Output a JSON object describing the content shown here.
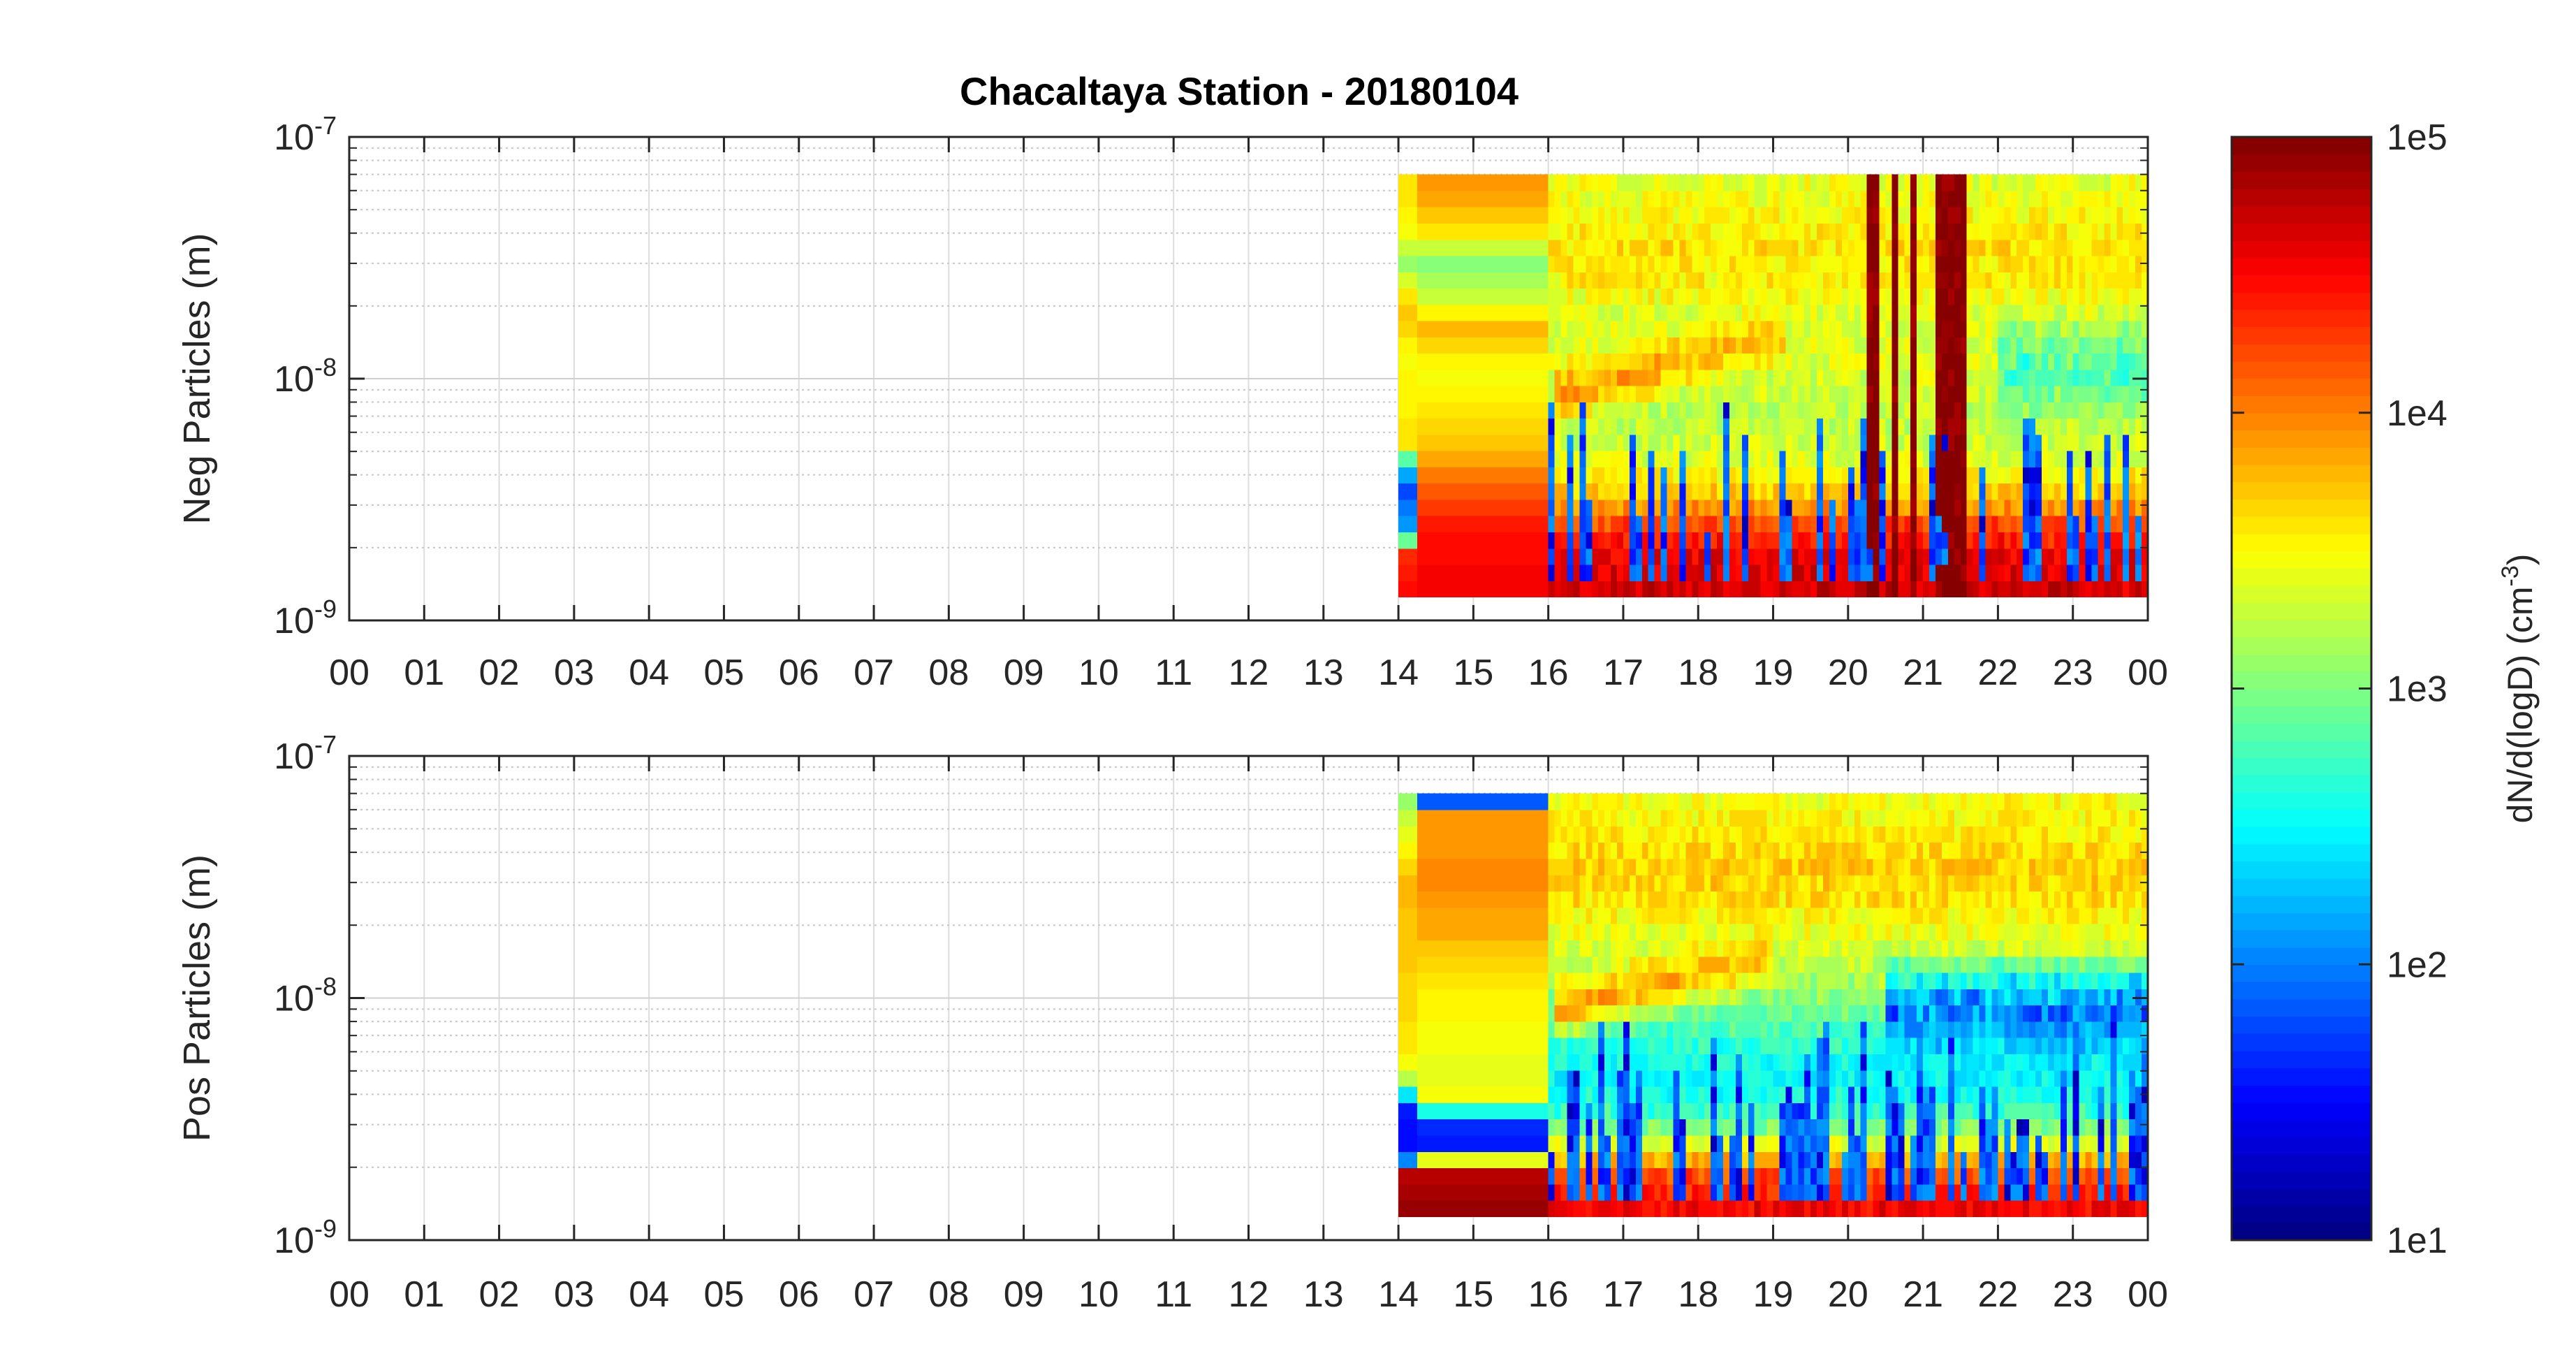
{
  "figure": {
    "title": "Chacaltaya Station - 20180104"
  },
  "colorbar": {
    "label_main": "dN/d(logD) (cm",
    "label_sup": "-3",
    "label_close": ")",
    "ticks": [
      {
        "value": 10,
        "label": "1e1"
      },
      {
        "value": 100,
        "label": "1e2"
      },
      {
        "value": 1000,
        "label": "1e3"
      },
      {
        "value": 10000,
        "label": "1e4"
      },
      {
        "value": 100000,
        "label": "1e5"
      }
    ],
    "range": [
      10,
      100000
    ],
    "scale": "log",
    "colormap": "jet"
  },
  "chart_data": [
    {
      "type": "heatmap",
      "title": "Chacaltaya Station - 20180104",
      "ylabel": "Neg Particles (m)",
      "xlabel": "",
      "x_ticks": [
        "00",
        "01",
        "02",
        "03",
        "04",
        "05",
        "06",
        "07",
        "08",
        "09",
        "10",
        "11",
        "12",
        "13",
        "14",
        "15",
        "16",
        "17",
        "18",
        "19",
        "20",
        "21",
        "22",
        "23",
        "00"
      ],
      "x_range_hours": [
        0,
        24
      ],
      "y_scale": "log",
      "y_range": [
        1e-09,
        1e-07
      ],
      "y_ticks": [
        {
          "value": 1e-09,
          "base": "10",
          "exp": "-9"
        },
        {
          "value": 1e-08,
          "base": "10",
          "exp": "-8"
        },
        {
          "value": 1e-07,
          "base": "10",
          "exp": "-7"
        }
      ],
      "grid": true,
      "data_extent_hours": [
        14.0,
        24.0
      ],
      "diameter_extent_m": [
        1.25e-09,
        7e-08
      ],
      "background_blocks": [
        {
          "start": 14.0,
          "end": 14.25,
          "profile": [
            [
              1.25e-09,
              30000
            ],
            [
              1.9e-09,
              20000
            ],
            [
              2.3e-09,
              150
            ],
            [
              3.5e-09,
              60
            ],
            [
              4.5e-09,
              300
            ],
            [
              5e-09,
              4000
            ],
            [
              1.2e-08,
              3000
            ],
            [
              2e-08,
              6000
            ],
            [
              3e-08,
              1200
            ],
            [
              4e-08,
              3000
            ],
            [
              5.5e-08,
              4000
            ],
            [
              7e-08,
              3500
            ]
          ]
        },
        {
          "start": 14.25,
          "end": 16.0,
          "profile": [
            [
              1.25e-09,
              35000
            ],
            [
              2e-09,
              30000
            ],
            [
              3e-09,
              20000
            ],
            [
              4e-09,
              10000
            ],
            [
              5.5e-09,
              5000
            ],
            [
              8e-09,
              3500
            ],
            [
              1.1e-08,
              2800
            ],
            [
              1.6e-08,
              6000
            ],
            [
              2.2e-08,
              2000
            ],
            [
              3e-08,
              1100
            ],
            [
              4e-08,
              3500
            ],
            [
              5e-08,
              6000
            ],
            [
              7e-08,
              9000
            ]
          ]
        },
        {
          "start": 16.0,
          "end": 24.0,
          "profile": [
            [
              1.25e-09,
              50000
            ],
            [
              1.9e-09,
              35000
            ],
            [
              2.4e-09,
              20000
            ],
            [
              3.2e-09,
              6000
            ],
            [
              4.5e-09,
              2500
            ],
            [
              6e-09,
              1800
            ],
            [
              8e-09,
              1800
            ],
            [
              1.2e-08,
              2500
            ],
            [
              1.8e-08,
              2200
            ],
            [
              2.5e-08,
              3500
            ],
            [
              3.5e-08,
              4000
            ],
            [
              5e-08,
              3000
            ],
            [
              7e-08,
              2500
            ]
          ]
        }
      ],
      "features": [
        {
          "kind": "growth_band",
          "start": 16.1,
          "end": 19.2,
          "d_start": 8.5e-09,
          "d_end": 1.6e-08,
          "peak": 9000
        },
        {
          "kind": "dip",
          "start": 22.0,
          "end": 24.0,
          "d_center": 1.1e-08,
          "min": 300
        },
        {
          "kind": "saturated_column",
          "start": 20.25,
          "end": 20.4,
          "value": 100000
        },
        {
          "kind": "saturated_column",
          "start": 20.55,
          "end": 20.65,
          "value": 100000
        },
        {
          "kind": "saturated_column",
          "start": 20.8,
          "end": 20.9,
          "value": 100000
        },
        {
          "kind": "saturated_column",
          "start": 21.2,
          "end": 21.6,
          "value": 100000
        }
      ],
      "noise_seed": 7,
      "spike_density": 0.35
    },
    {
      "type": "heatmap",
      "ylabel": "Pos Particles (m)",
      "xlabel": "",
      "x_ticks": [
        "00",
        "01",
        "02",
        "03",
        "04",
        "05",
        "06",
        "07",
        "08",
        "09",
        "10",
        "11",
        "12",
        "13",
        "14",
        "15",
        "16",
        "17",
        "18",
        "19",
        "20",
        "21",
        "22",
        "23",
        "00"
      ],
      "x_range_hours": [
        0,
        24
      ],
      "y_scale": "log",
      "y_range": [
        1e-09,
        1e-07
      ],
      "y_ticks": [
        {
          "value": 1e-09,
          "base": "10",
          "exp": "-9"
        },
        {
          "value": 1e-08,
          "base": "10",
          "exp": "-8"
        },
        {
          "value": 1e-07,
          "base": "10",
          "exp": "-7"
        }
      ],
      "grid": true,
      "data_extent_hours": [
        14.0,
        24.0
      ],
      "diameter_extent_m": [
        1.25e-09,
        7e-08
      ],
      "background_blocks": [
        {
          "start": 14.0,
          "end": 14.25,
          "profile": [
            [
              1.25e-09,
              80000
            ],
            [
              1.9e-09,
              60000
            ],
            [
              2.2e-09,
              30
            ],
            [
              3.5e-09,
              40
            ],
            [
              4.5e-09,
              1500
            ],
            [
              6e-09,
              4000
            ],
            [
              1.5e-08,
              5000
            ],
            [
              3e-08,
              6000
            ],
            [
              5.5e-08,
              2000
            ],
            [
              7e-08,
              1000
            ]
          ]
        },
        {
          "start": 14.25,
          "end": 16.0,
          "profile": [
            [
              1.25e-09,
              80000
            ],
            [
              1.9e-09,
              60000
            ],
            [
              2.1e-09,
              5000
            ],
            [
              2.5e-09,
              40
            ],
            [
              2.8e-09,
              60
            ],
            [
              3.2e-09,
              30
            ],
            [
              3.6e-09,
              3000
            ],
            [
              5e-09,
              2500
            ],
            [
              8e-09,
              3000
            ],
            [
              1.2e-08,
              4000
            ],
            [
              2e-08,
              7000
            ],
            [
              3e-08,
              9000
            ],
            [
              5e-08,
              8000
            ],
            [
              6e-08,
              9000
            ],
            [
              6.6e-08,
              20
            ]
          ]
        },
        {
          "start": 16.0,
          "end": 24.0,
          "profile": [
            [
              1.25e-09,
              40000
            ],
            [
              1.9e-09,
              15000
            ],
            [
              2.4e-09,
              3000
            ],
            [
              3.2e-09,
              600
            ],
            [
              4.5e-09,
              300
            ],
            [
              6e-09,
              400
            ],
            [
              8e-09,
              700
            ],
            [
              1.2e-08,
              1500
            ],
            [
              1.8e-08,
              2500
            ],
            [
              2.5e-08,
              4000
            ],
            [
              3.5e-08,
              5000
            ],
            [
              5e-08,
              3500
            ],
            [
              7e-08,
              2800
            ]
          ]
        }
      ],
      "features": [
        {
          "kind": "growth_band",
          "start": 16.1,
          "end": 19.0,
          "d_start": 9e-09,
          "d_end": 1.5e-08,
          "peak": 10000
        },
        {
          "kind": "dip",
          "start": 20.5,
          "end": 24.0,
          "d_center": 9e-09,
          "min": 40
        }
      ],
      "noise_seed": 19,
      "spike_density": 0.55
    }
  ]
}
